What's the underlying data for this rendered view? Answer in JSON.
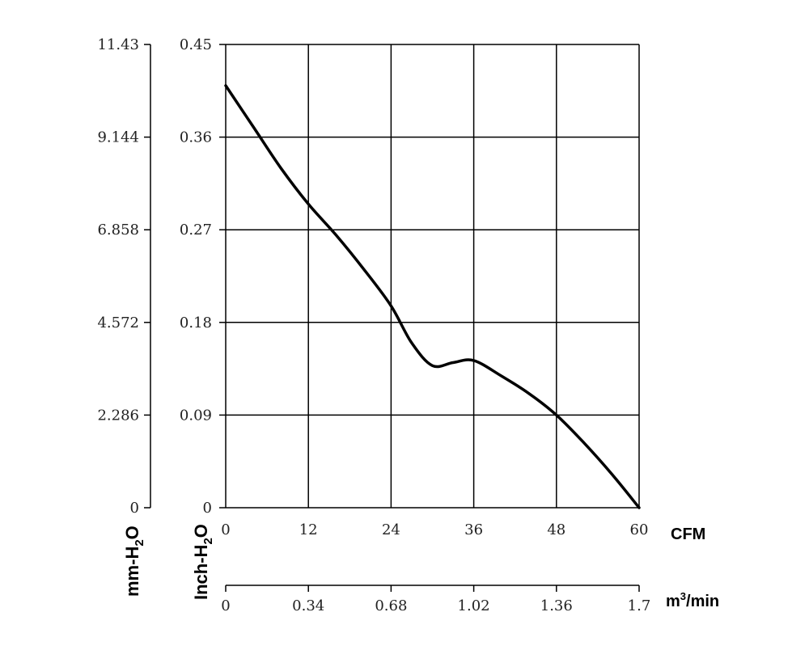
{
  "chart_data": {
    "type": "line",
    "x_primary": {
      "unit": "CFM",
      "ticks": [
        "0",
        "12",
        "24",
        "36",
        "48",
        "60"
      ],
      "range": [
        0,
        60
      ]
    },
    "x_secondary": {
      "unit": "m³/min",
      "unit_base": "m",
      "unit_sup": "3",
      "unit_rest": "/min",
      "ticks": [
        "0",
        "0.34",
        "0.68",
        "1.02",
        "1.36",
        "1.7"
      ]
    },
    "y_primary": {
      "label": "Inch-H₂O",
      "label_base": "Inch-H",
      "label_sub": "2",
      "label_rest": "O",
      "ticks": [
        "0",
        "0.09",
        "0.18",
        "0.27",
        "0.36",
        "0.45"
      ],
      "range": [
        0,
        0.45
      ]
    },
    "y_secondary": {
      "label": "mm-H₂O",
      "label_base": "mm-H",
      "label_sub": "2",
      "label_rest": "O",
      "ticks": [
        "0",
        "2.286",
        "4.572",
        "6.858",
        "9.144",
        "11.43"
      ]
    },
    "grid": true,
    "series": [
      {
        "x": [
          0,
          4,
          8,
          12,
          16,
          20,
          24,
          27,
          30,
          33,
          36,
          40,
          44,
          48,
          52,
          56,
          60
        ],
        "y": [
          0.41,
          0.37,
          0.33,
          0.295,
          0.265,
          0.232,
          0.196,
          0.16,
          0.138,
          0.141,
          0.143,
          0.128,
          0.111,
          0.09,
          0.063,
          0.033,
          0.0
        ]
      }
    ]
  }
}
